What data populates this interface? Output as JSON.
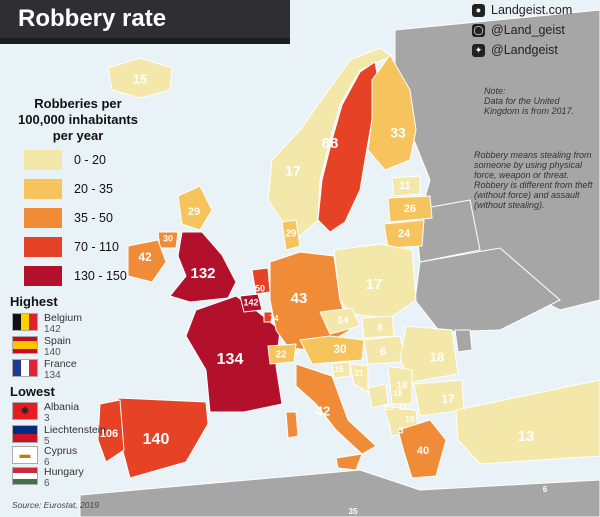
{
  "title": "Robbery rate",
  "social": {
    "website": "Landgeist.com",
    "instagram": "@Land_geist",
    "twitter": "@Landgeist"
  },
  "legend": {
    "title_lines": [
      "Robberies per",
      "100,000 inhabitants",
      "per year"
    ],
    "bins": [
      {
        "label": "0 - 20",
        "color": "#f3e7a9"
      },
      {
        "label": "20 - 35",
        "color": "#f7c35c"
      },
      {
        "label": "35 - 50",
        "color": "#f08c38"
      },
      {
        "label": "70 - 110",
        "color": "#e64225"
      },
      {
        "label": "130 - 150",
        "color": "#b3112b"
      }
    ]
  },
  "highest": {
    "heading": "Highest",
    "items": [
      {
        "country": "Belgium",
        "value": "142"
      },
      {
        "country": "Spain",
        "value": "140"
      },
      {
        "country": "France",
        "value": "134"
      }
    ]
  },
  "lowest": {
    "heading": "Lowest",
    "items": [
      {
        "country": "Albania",
        "value": "3"
      },
      {
        "country": "Liechtenstein",
        "value": "5"
      },
      {
        "country": "Cyprus",
        "value": "6"
      },
      {
        "country": "Hungary",
        "value": "6"
      }
    ]
  },
  "notes": {
    "uk": [
      "Note:",
      "Data for the United",
      "Kingdom is from 2017."
    ],
    "definition": [
      "Robbery means stealing from",
      "someone by using physical",
      "force, weapon or threat.",
      "Robbery is different from theft",
      "(without force) and assault",
      "(without stealing)."
    ]
  },
  "source": "Source: Eurostat, 2019",
  "map_values": {
    "iceland": "15",
    "norway": "17",
    "sweden": "88",
    "finland": "33",
    "estonia": "11",
    "latvia": "26",
    "lithuania": "24",
    "denmark": "29",
    "scotland": "29",
    "ireland": "42",
    "northern_ireland": "30",
    "england": "132",
    "netherlands": "50",
    "belgium": "142",
    "luxembourg": "74",
    "germany": "43",
    "poland": "17",
    "czechia": "14",
    "slovakia": "8",
    "austria": "30",
    "switzerland": "22",
    "liechtenstein": "5",
    "hungary": "6",
    "romania": "18",
    "france": "134",
    "slovenia": "15",
    "croatia": "21",
    "serbia": "18",
    "bosnia": "15",
    "montenegro": "11",
    "kosovo": "18",
    "north_macedonia": "18",
    "bulgaria": "17",
    "albania": "3",
    "italy": "42",
    "spain": "140",
    "portugal": "106",
    "greece": "40",
    "turkey": "13",
    "cyprus": "6",
    "malta": "35"
  }
}
